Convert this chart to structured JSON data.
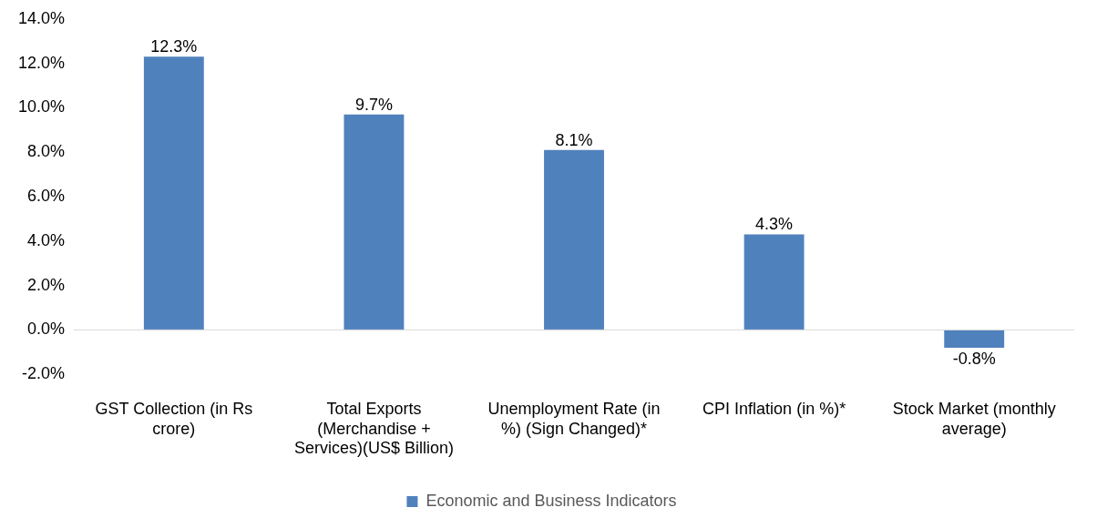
{
  "chart_data": {
    "type": "bar",
    "categories": [
      "GST Collection (in Rs crore)",
      "Total Exports (Merchandise + Services)(US$ Billion)",
      "Unemployment Rate (in %) (Sign Changed)*",
      "CPI Inflation (in %)*",
      "Stock Market (monthly average)"
    ],
    "series": [
      {
        "name": "Economic and Business Indicators",
        "color": "#4f81bd",
        "values": [
          12.3,
          9.7,
          8.1,
          4.3,
          -0.8
        ],
        "value_labels": [
          "12.3%",
          "9.7%",
          "8.1%",
          "4.3%",
          "-0.8%"
        ]
      }
    ],
    "ylim": [
      -2,
      14
    ],
    "yticks": [
      {
        "value": -2,
        "label": "-2.0%"
      },
      {
        "value": 0,
        "label": "0.0%"
      },
      {
        "value": 2,
        "label": "2.0%"
      },
      {
        "value": 4,
        "label": "4.0%"
      },
      {
        "value": 6,
        "label": "6.0%"
      },
      {
        "value": 8,
        "label": "8.0%"
      },
      {
        "value": 10,
        "label": "10.0%"
      },
      {
        "value": 12,
        "label": "12.0%"
      },
      {
        "value": 14,
        "label": "14.0%"
      }
    ],
    "ref_lines": [
      {
        "axis": "y",
        "value": 0,
        "color": "#d9d9d9"
      }
    ],
    "grid": false,
    "legend": "bottom"
  }
}
